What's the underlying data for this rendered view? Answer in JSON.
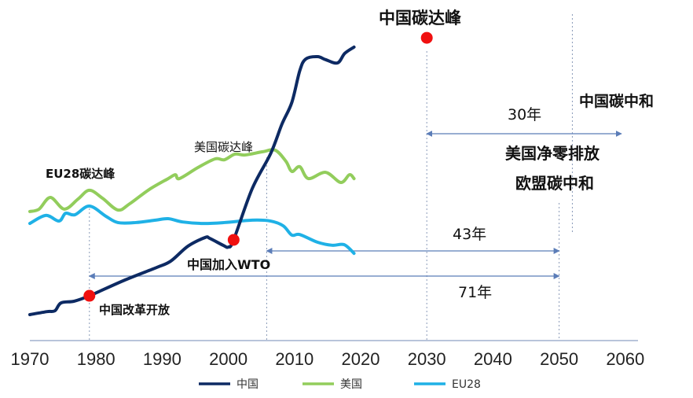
{
  "chart_data": {
    "type": "line",
    "title": "",
    "xlabel": "",
    "ylabel": "",
    "xlim": [
      1970,
      2060
    ],
    "x_ticks": [
      "1970",
      "1980",
      "1990",
      "2000",
      "2010",
      "2020",
      "2030",
      "2040",
      "2050",
      "2060"
    ],
    "grid": false,
    "legend_position": "bottom",
    "series": [
      {
        "name": "中国",
        "color": "#0d2a63",
        "points": [
          [
            1970,
            7.9
          ],
          [
            1972.6,
            8.9
          ],
          [
            1973.8,
            9.2
          ],
          [
            1974.7,
            11.8
          ],
          [
            1976.7,
            12.4
          ],
          [
            1979,
            14.2
          ],
          [
            1984.4,
            19.5
          ],
          [
            1989.2,
            23.7
          ],
          [
            1991.3,
            25.8
          ],
          [
            1993.9,
            30.8
          ],
          [
            1996.5,
            33.7
          ],
          [
            1997.2,
            33.4
          ],
          [
            1999.2,
            31.1
          ],
          [
            2000,
            30.5
          ],
          [
            2000.8,
            32.9
          ],
          [
            2003.6,
            50
          ],
          [
            2006.4,
            61.8
          ],
          [
            2008.1,
            71.6
          ],
          [
            2009.6,
            78.9
          ],
          [
            2010.8,
            89.5
          ],
          [
            2011.7,
            93.4
          ],
          [
            2013.5,
            94.2
          ],
          [
            2014.7,
            93.2
          ],
          [
            2016.5,
            92.1
          ],
          [
            2017.6,
            95.3
          ],
          [
            2019,
            97.4
          ]
        ]
      },
      {
        "name": "美国",
        "color": "#92cd5c",
        "points": [
          [
            1970,
            42.4
          ],
          [
            1971.4,
            43.2
          ],
          [
            1973.1,
            47.1
          ],
          [
            1975.2,
            43.2
          ],
          [
            1977.3,
            46.6
          ],
          [
            1979,
            49.5
          ],
          [
            1981,
            46.8
          ],
          [
            1983.3,
            42.9
          ],
          [
            1985.1,
            45
          ],
          [
            1988,
            49.7
          ],
          [
            1990.9,
            53.4
          ],
          [
            1992,
            54.7
          ],
          [
            1992.6,
            53.4
          ],
          [
            1995.4,
            57.1
          ],
          [
            1998,
            60
          ],
          [
            1999.4,
            59.7
          ],
          [
            2001,
            61.6
          ],
          [
            2002.5,
            61.3
          ],
          [
            2005.2,
            62.4
          ],
          [
            2007.1,
            62.9
          ],
          [
            2008.7,
            59.2
          ],
          [
            2009.6,
            55.8
          ],
          [
            2010.8,
            57.4
          ],
          [
            2012.1,
            53.4
          ],
          [
            2014.7,
            55.5
          ],
          [
            2017,
            52.1
          ],
          [
            2018.3,
            54.7
          ],
          [
            2019,
            53.4
          ]
        ]
      },
      {
        "name": "EU28",
        "color": "#1fb1e6",
        "points": [
          [
            1970,
            38.4
          ],
          [
            1972.4,
            41.1
          ],
          [
            1974.4,
            39.2
          ],
          [
            1975.4,
            41.8
          ],
          [
            1976.8,
            41.3
          ],
          [
            1979,
            44.2
          ],
          [
            1981.5,
            40.8
          ],
          [
            1983.3,
            38.7
          ],
          [
            1986,
            38.7
          ],
          [
            1989,
            39.5
          ],
          [
            1990.9,
            40
          ],
          [
            1993.1,
            38.9
          ],
          [
            1996.2,
            38.4
          ],
          [
            1999.4,
            38.7
          ],
          [
            2003.6,
            39.5
          ],
          [
            2006.4,
            39.2
          ],
          [
            2008.3,
            37.6
          ],
          [
            2009.6,
            34.5
          ],
          [
            2010.8,
            34.7
          ],
          [
            2013.5,
            32.1
          ],
          [
            2015.7,
            31.1
          ],
          [
            2017.5,
            31.3
          ],
          [
            2019,
            28.4
          ]
        ]
      }
    ],
    "markers": [
      {
        "label": "中国改革开放",
        "year": 1979,
        "series": "中国"
      },
      {
        "label": "中国加入WTO",
        "year": 2000.8,
        "series": "中国"
      },
      {
        "label": "中国碳达峰",
        "year": 2030,
        "value": 100.5
      }
    ],
    "vlines": [
      {
        "year": 1979,
        "label": "EU28碳达峰"
      },
      {
        "year": 2005.8,
        "label": "美国碳达峰"
      },
      {
        "year": 2030,
        "label": "中国碳达峰"
      },
      {
        "year": 2050,
        "label": "美国净零排放 欧盟碳中和"
      },
      {
        "year": 2052,
        "label": "中国碳中和"
      }
    ],
    "spans": [
      {
        "from": 2030,
        "to": 2060,
        "label": "30年"
      },
      {
        "from": 2005.8,
        "to": 2050,
        "label": "43年"
      },
      {
        "from": 1979,
        "to": 2050,
        "label": "71年"
      }
    ],
    "annotations": {
      "eu_peak": "EU28碳达峰",
      "us_peak": "美国碳达峰",
      "cn_peak": "中国碳达峰",
      "cn_neutral": "中国碳中和",
      "us_netzero": "美国净零排放",
      "eu_neutral": "欧盟碳中和",
      "cn_reform": "中国改革开放",
      "cn_wto": "中国加入WTO",
      "span30": "30年",
      "span43": "43年",
      "span71": "71年"
    }
  },
  "colors": {
    "marker": "#f01010",
    "arrow": "#5b7db8",
    "dashed": "#8a9bb8",
    "axis": "#8ea0c4"
  }
}
